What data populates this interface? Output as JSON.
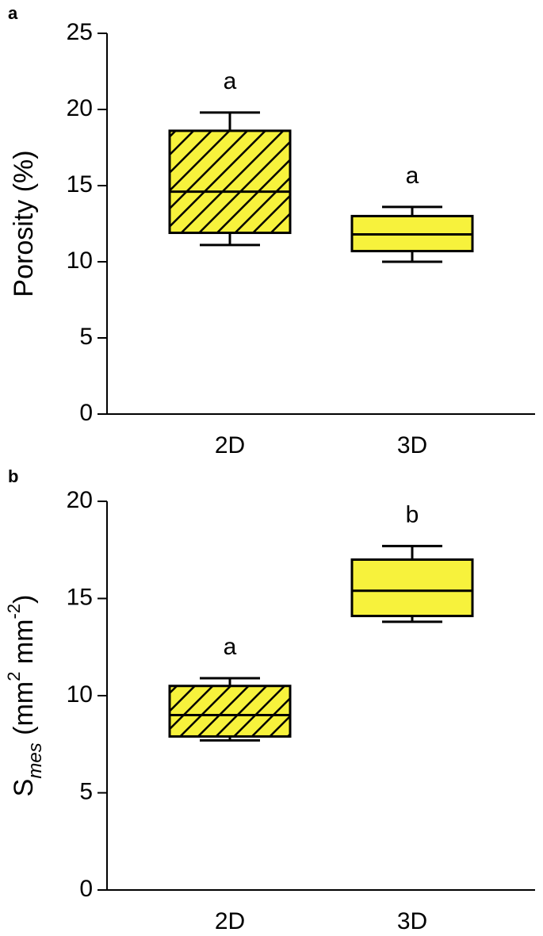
{
  "chart_data": [
    {
      "type": "box",
      "panel": "a",
      "ylabel": [
        {
          "text": "Porosity (%)"
        }
      ],
      "categories": [
        "2D",
        "3D"
      ],
      "ylim": [
        0,
        25
      ],
      "yticks": [
        0,
        5,
        10,
        15,
        20,
        25
      ],
      "color": "#f7f23c",
      "boxes": [
        {
          "low": 11.1,
          "q1": 11.9,
          "median": 14.6,
          "q3": 18.6,
          "high": 19.8,
          "letter": "a",
          "hatch": true
        },
        {
          "low": 10.0,
          "q1": 10.7,
          "median": 11.8,
          "q3": 13.0,
          "high": 13.6,
          "letter": "a",
          "hatch": false
        }
      ]
    },
    {
      "type": "box",
      "panel": "b",
      "ylabel": [
        {
          "text": "S"
        },
        {
          "text": "mes",
          "position": "sub",
          "italic": true
        },
        {
          "text": " (mm"
        },
        {
          "text": "2",
          "position": "super"
        },
        {
          "text": " mm"
        },
        {
          "text": "-2",
          "position": "super"
        },
        {
          "text": ")"
        }
      ],
      "categories": [
        "2D",
        "3D"
      ],
      "ylim": [
        0,
        20
      ],
      "yticks": [
        0,
        5,
        10,
        15,
        20
      ],
      "color": "#f7f23c",
      "boxes": [
        {
          "low": 7.7,
          "q1": 7.9,
          "median": 9.0,
          "q3": 10.5,
          "high": 10.9,
          "letter": "a",
          "hatch": true
        },
        {
          "low": 13.8,
          "q1": 14.1,
          "median": 15.4,
          "q3": 17.0,
          "high": 17.7,
          "letter": "b",
          "hatch": false
        }
      ]
    }
  ]
}
